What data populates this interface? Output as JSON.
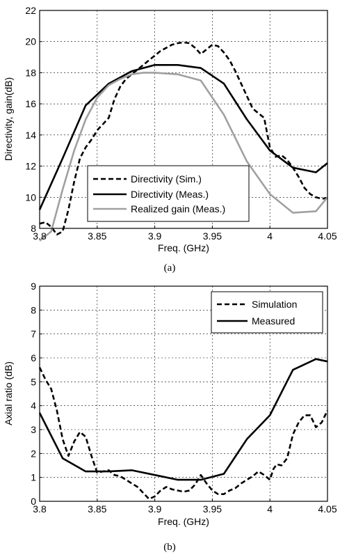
{
  "chart_data": [
    {
      "type": "line",
      "caption": "(a)",
      "xlabel": "Freq. (GHz)",
      "ylabel": "Directivity, gain(dB)",
      "xlim": [
        3.8,
        4.05
      ],
      "ylim": [
        8,
        22
      ],
      "xticks": [
        "3.8",
        "3.85",
        "3.9",
        "3.95",
        "4",
        "4.05"
      ],
      "yticks": [
        "8",
        "10",
        "12",
        "14",
        "16",
        "18",
        "20",
        "22"
      ],
      "grid": true,
      "legend_position": "bottom-center",
      "series": [
        {
          "name": "Directivity (Sim.)",
          "style": "dashed",
          "color": "#000000",
          "x": [
            3.8,
            3.805,
            3.81,
            3.815,
            3.82,
            3.825,
            3.83,
            3.835,
            3.84,
            3.845,
            3.85,
            3.855,
            3.86,
            3.865,
            3.87,
            3.875,
            3.88,
            3.885,
            3.89,
            3.895,
            3.9,
            3.905,
            3.91,
            3.915,
            3.92,
            3.925,
            3.93,
            3.935,
            3.94,
            3.945,
            3.95,
            3.955,
            3.96,
            3.965,
            3.97,
            3.975,
            3.98,
            3.985,
            3.99,
            3.995,
            4.0,
            4.005,
            4.01,
            4.015,
            4.02,
            4.025,
            4.03,
            4.035,
            4.04,
            4.045,
            4.05
          ],
          "values": [
            8.3,
            8.4,
            8.1,
            7.6,
            7.8,
            9.2,
            11.0,
            12.5,
            13.2,
            13.7,
            14.3,
            14.7,
            15.1,
            16.3,
            17.1,
            17.6,
            17.9,
            18.2,
            18.5,
            18.8,
            19.1,
            19.4,
            19.6,
            19.8,
            19.9,
            19.95,
            19.9,
            19.6,
            19.2,
            19.5,
            19.8,
            19.7,
            19.3,
            18.8,
            18.1,
            17.3,
            16.5,
            15.7,
            15.4,
            15.1,
            13.2,
            12.6,
            12.7,
            12.4,
            11.9,
            11.3,
            10.6,
            10.2,
            10.0,
            9.9,
            9.95
          ]
        },
        {
          "name": "Directivity (Meas.)",
          "style": "solid",
          "color": "#000000",
          "x": [
            3.8,
            3.82,
            3.84,
            3.86,
            3.88,
            3.9,
            3.92,
            3.94,
            3.96,
            3.98,
            4.0,
            4.02,
            4.04,
            4.05
          ],
          "values": [
            9.2,
            12.5,
            15.9,
            17.3,
            18.1,
            18.5,
            18.5,
            18.3,
            17.3,
            15.0,
            13.0,
            11.9,
            11.6,
            12.2
          ]
        },
        {
          "name": "Realized gain (Meas.)",
          "style": "solid",
          "color": "#a0a0a0",
          "x": [
            3.8,
            3.81,
            3.82,
            3.83,
            3.84,
            3.85,
            3.86,
            3.87,
            3.88,
            3.89,
            3.9,
            3.92,
            3.94,
            3.96,
            3.98,
            4.0,
            4.02,
            4.04,
            4.05
          ],
          "values": [
            7.2,
            7.8,
            10.5,
            13.0,
            15.0,
            16.4,
            17.2,
            17.6,
            17.9,
            18.0,
            18.0,
            17.9,
            17.5,
            15.3,
            12.3,
            10.2,
            9.0,
            9.1,
            10.0
          ]
        }
      ]
    },
    {
      "type": "line",
      "caption": "(b)",
      "xlabel": "Freq. (GHz)",
      "ylabel": "Axial ratio (dB)",
      "xlim": [
        3.8,
        4.05
      ],
      "ylim": [
        0,
        9
      ],
      "xticks": [
        "3.8",
        "3.85",
        "3.9",
        "3.95",
        "4",
        "4.05"
      ],
      "yticks": [
        "0",
        "1",
        "2",
        "3",
        "4",
        "5",
        "6",
        "7",
        "8",
        "9"
      ],
      "grid": true,
      "legend_position": "top-right",
      "series": [
        {
          "name": "Simulation",
          "style": "dashed",
          "color": "#000000",
          "x": [
            3.8,
            3.805,
            3.81,
            3.815,
            3.82,
            3.825,
            3.83,
            3.835,
            3.84,
            3.845,
            3.85,
            3.855,
            3.86,
            3.865,
            3.87,
            3.875,
            3.88,
            3.885,
            3.89,
            3.895,
            3.9,
            3.905,
            3.91,
            3.915,
            3.92,
            3.925,
            3.93,
            3.935,
            3.94,
            3.945,
            3.95,
            3.955,
            3.96,
            3.965,
            3.97,
            3.975,
            3.98,
            3.985,
            3.99,
            3.995,
            4.0,
            4.003,
            4.006,
            4.01,
            4.015,
            4.02,
            4.025,
            4.03,
            4.035,
            4.04,
            4.045,
            4.05
          ],
          "values": [
            5.6,
            5.1,
            4.7,
            3.8,
            2.6,
            1.9,
            2.5,
            2.9,
            2.7,
            1.9,
            1.2,
            1.25,
            1.3,
            1.1,
            1.05,
            0.9,
            0.75,
            0.6,
            0.35,
            0.1,
            0.2,
            0.45,
            0.6,
            0.5,
            0.45,
            0.4,
            0.45,
            0.7,
            1.1,
            0.75,
            0.45,
            0.3,
            0.3,
            0.45,
            0.55,
            0.75,
            0.9,
            1.05,
            1.25,
            1.1,
            0.9,
            1.35,
            1.55,
            1.5,
            1.8,
            2.8,
            3.3,
            3.6,
            3.6,
            3.1,
            3.3,
            3.8
          ]
        },
        {
          "name": "Measured",
          "style": "solid",
          "color": "#000000",
          "x": [
            3.8,
            3.82,
            3.84,
            3.86,
            3.88,
            3.9,
            3.92,
            3.94,
            3.96,
            3.98,
            4.0,
            4.02,
            4.04,
            4.05
          ],
          "values": [
            3.7,
            1.8,
            1.25,
            1.25,
            1.3,
            1.1,
            0.9,
            0.9,
            1.15,
            2.6,
            3.6,
            5.5,
            5.95,
            5.85
          ]
        }
      ]
    }
  ]
}
